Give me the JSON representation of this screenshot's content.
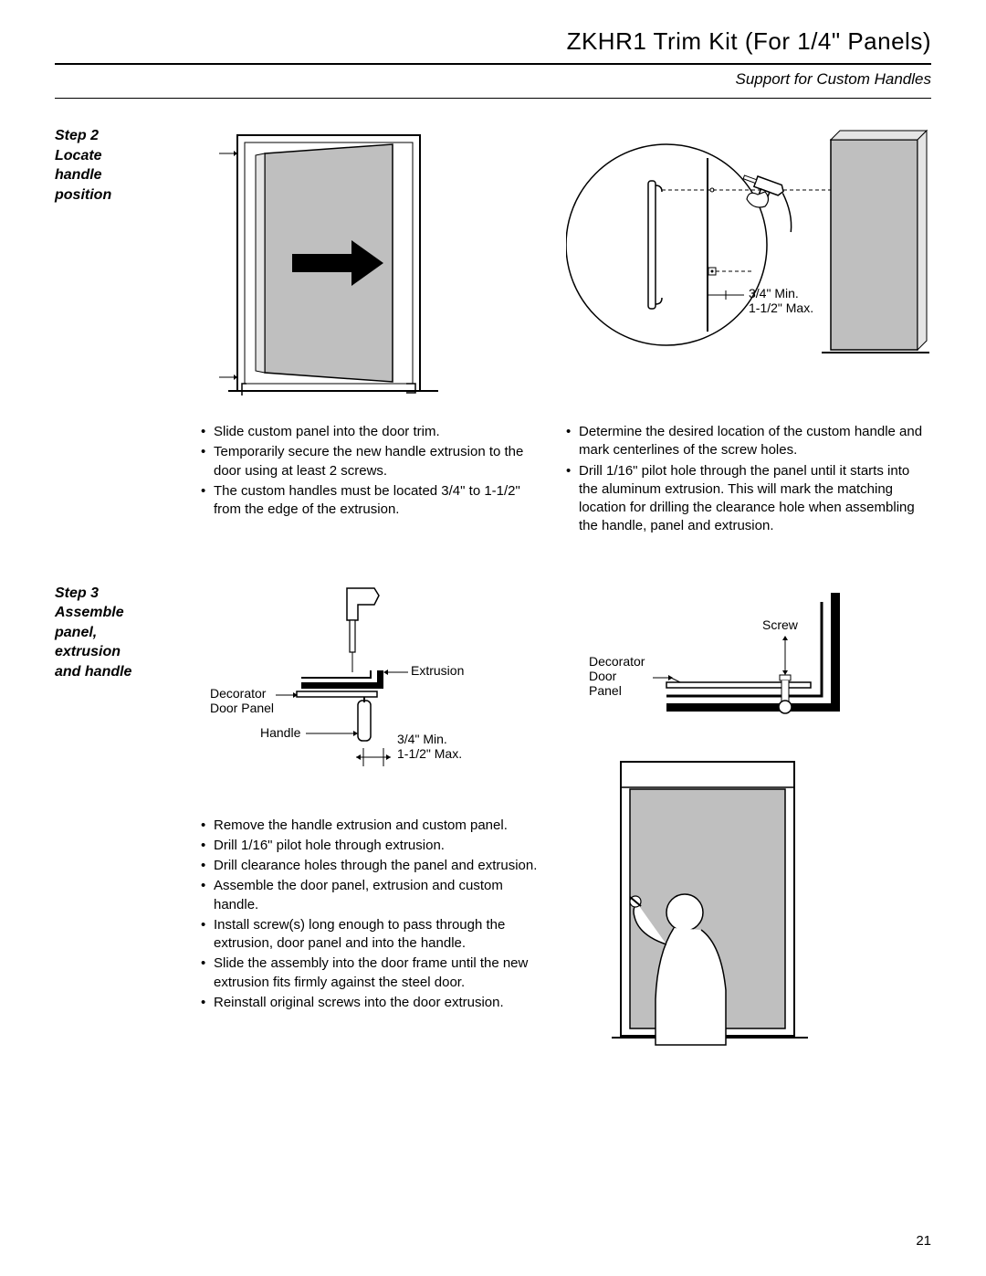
{
  "title": "ZKHR1 Trim Kit (For 1/4\" Panels)",
  "subtitle": "Support for Custom Handles",
  "page_number": "21",
  "step2": {
    "label": "Step 2\nLocate\nhandle\nposition",
    "left_bullets": [
      "Slide custom panel into the door trim.",
      "Temporarily secure the new handle extrusion to the door using at least 2 screws.",
      "The custom handles must be located 3/4\" to 1-1/2\" from the edge of the extrusion."
    ],
    "right_bullets": [
      "Determine the desired location of the custom handle and mark centerlines of the screw holes.",
      "Drill 1/16\" pilot hole through the panel until it starts into the aluminum extrusion. This will mark the matching location for drilling the clearance hole when assembling the handle, panel and extrusion."
    ],
    "labels": {
      "dim": "3/4\" Min.\n1-1/2\" Max."
    }
  },
  "step3": {
    "label": "Step 3\nAssemble\npanel,\nextrusion\nand handle",
    "left_bullets": [
      "Remove the handle extrusion and custom panel.",
      "Drill 1/16\" pilot hole through extrusion.",
      "Drill clearance holes through the panel and extrusion.",
      "Assemble the door panel, extrusion and custom handle.",
      "Install screw(s) long enough to pass through the extrusion, door panel and into the handle.",
      "Slide the assembly into the door frame until the new extrusion fits firmly against the steel door.",
      "Reinstall original screws into the door extrusion."
    ],
    "labels": {
      "extrusion": "Extrusion",
      "decorator_door_panel": "Decorator\nDoor Panel",
      "handle": "Handle",
      "dim": "3/4\" Min.\n1-1/2\" Max.",
      "screw": "Screw",
      "decorator_door_panel2": "Decorator\nDoor\nPanel"
    }
  },
  "colors": {
    "panel_fill": "#bfbfbf",
    "light_fill": "#e5e5e5",
    "line": "#000000"
  }
}
